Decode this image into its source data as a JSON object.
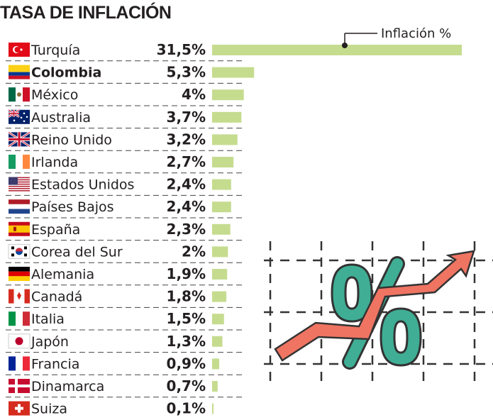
{
  "chart_data": {
    "type": "bar",
    "orientation": "horizontal",
    "title": "TASA DE INFLACIÓN",
    "legend": "Inflación %",
    "legend_placement": "top-right",
    "xlim": [
      0,
      31.5
    ],
    "bar_color": "#c5dc8f",
    "categories": [
      "Turquía",
      "Colombia",
      "México",
      "Australia",
      "Reino Unido",
      "Irlanda",
      "Estados Unidos",
      "Países Bajos",
      "España",
      "Corea del Sur",
      "Alemania",
      "Canadá",
      "Italia",
      "Japón",
      "Francia",
      "Dinamarca",
      "Suiza"
    ],
    "flags": [
      "tr",
      "co",
      "mx",
      "au",
      "gb",
      "ie",
      "us",
      "nl",
      "es",
      "kr",
      "de",
      "ca",
      "it",
      "jp",
      "fr",
      "dk",
      "ch"
    ],
    "values": [
      31.5,
      5.3,
      4,
      3.7,
      3.2,
      2.7,
      2.4,
      2.4,
      2.3,
      2,
      1.9,
      1.8,
      1.5,
      1.3,
      0.9,
      0.7,
      0.1
    ],
    "value_labels": [
      "31,5%",
      "5,3%",
      "4%",
      "3,7%",
      "3,2%",
      "2,7%",
      "2,4%",
      "2,4%",
      "2,3%",
      "2%",
      "1,9%",
      "1,8%",
      "1,5%",
      "1,3%",
      "0,9%",
      "0,7%",
      "0,1%"
    ]
  },
  "illustration": {
    "icon": "percent-rising-arrow-icon",
    "arrow_color": "#ef7462",
    "percent_color": "#3fae95"
  }
}
